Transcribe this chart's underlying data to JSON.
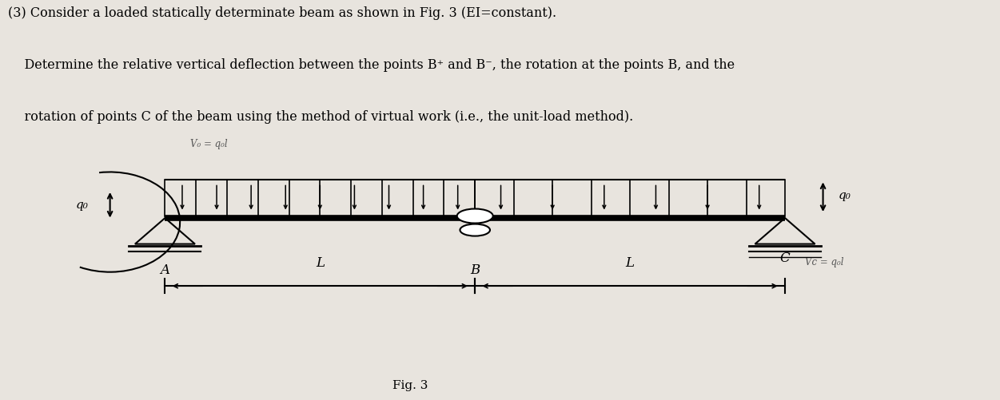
{
  "title_line1": "(3) Consider a loaded statically determinate beam as shown in Fig. 3 (EI=constant).",
  "title_line2": "    Determine the relative vertical deflection between the points B⁺ and B⁻, the rotation at the points B, and the",
  "title_line3": "    rotation of points C of the beam using the method of virtual work (i.e., the unit-load method).",
  "fig_label": "Fig. 3",
  "label_A": "A",
  "label_B": "B",
  "label_C": "C",
  "label_L1": "L",
  "label_L2": "L",
  "label_q0_left": "q₀",
  "label_q0_right": "q₀",
  "label_VA": "V₀ = q₀l",
  "label_VC": "Vc = q₀l",
  "bg_color": "#e8e4de",
  "beam_color": "#111111",
  "bx0": 0.165,
  "bxM": 0.475,
  "bx1": 0.785,
  "by": 0.455
}
